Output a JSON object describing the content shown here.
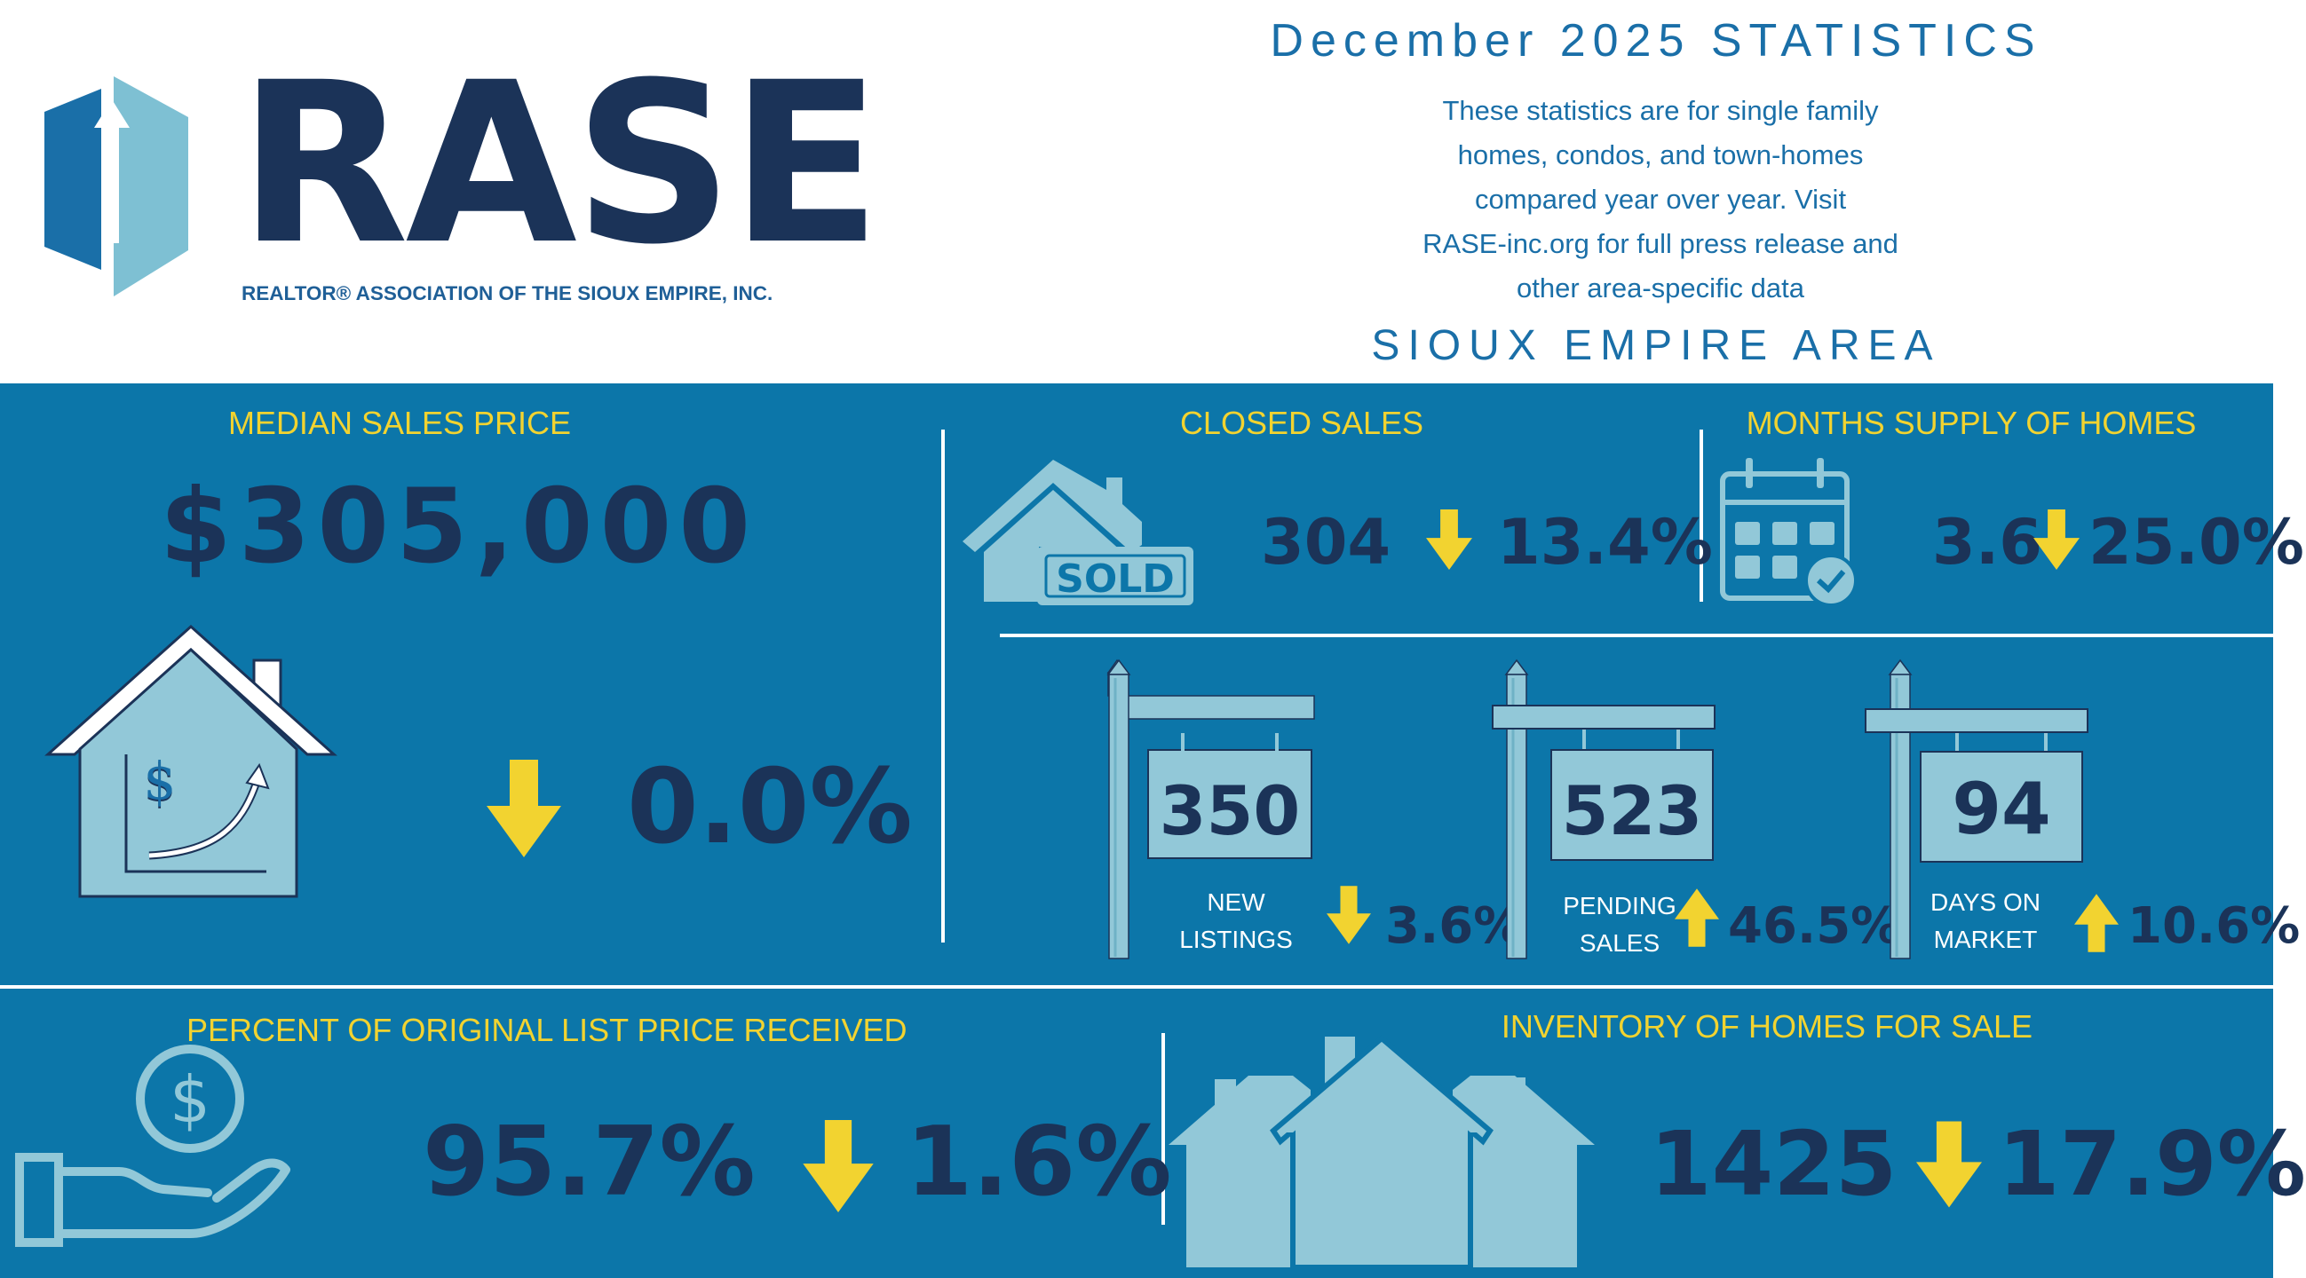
{
  "logo": {
    "name": "RASE",
    "subtitle": "REALTOR® ASSOCIATION OF THE SIOUX EMPIRE, INC."
  },
  "header": {
    "title": "December 2025 STATISTICS",
    "description_lines": [
      "These statistics are for single family",
      "homes, condos, and town-homes",
      "compared year over year. Visit",
      "RASE-inc.org for full press release and",
      "other area-specific data"
    ],
    "area": "SIOUX EMPIRE AREA"
  },
  "median": {
    "label": "MEDIAN SALES PRICE",
    "value": "$305,000",
    "change": "0.0%",
    "direction": "down",
    "icon": "house-chart-icon"
  },
  "closed": {
    "label": "CLOSED SALES",
    "value": "304",
    "change": "13.4%",
    "direction": "down",
    "icon": "sold-house-icon",
    "sold_text": "SOLD"
  },
  "supply": {
    "label": "MONTHS SUPPLY OF HOMES",
    "value": "3.6",
    "change": "25.0%",
    "direction": "down",
    "icon": "calendar-icon"
  },
  "new_listings": {
    "value": "350",
    "label_lines": [
      "NEW",
      "LISTINGS"
    ],
    "change": "3.6%",
    "direction": "down"
  },
  "pending": {
    "value": "523",
    "label_lines": [
      "PENDING",
      "SALES"
    ],
    "change": "46.5%",
    "direction": "up"
  },
  "dom": {
    "value": "94",
    "label_lines": [
      "DAYS ON",
      "MARKET"
    ],
    "change": "10.6%",
    "direction": "up"
  },
  "pct_list": {
    "label": "PERCENT OF ORIGINAL LIST PRICE RECEIVED",
    "value": "95.7%",
    "change": "1.6%",
    "direction": "down",
    "icon": "hand-coin-icon"
  },
  "inventory": {
    "label": "INVENTORY OF HOMES FOR SALE",
    "value": "1425",
    "change": "17.9%",
    "direction": "down",
    "icon": "houses-icon"
  },
  "colors": {
    "navy": "#1b3358",
    "blue_bg": "#0c76a9",
    "light_blue": "#92c8d8",
    "yellow": "#f2d330",
    "header_text": "#1a6fa8"
  }
}
